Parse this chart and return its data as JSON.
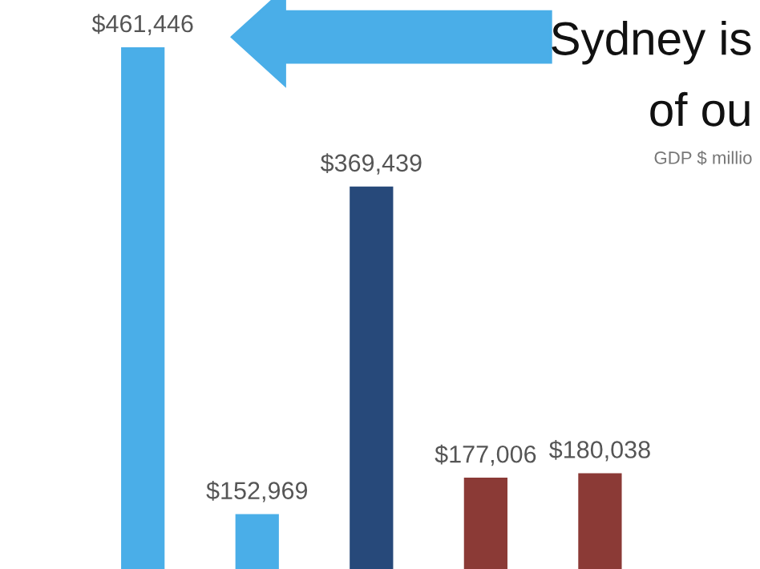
{
  "chart_data": {
    "type": "bar",
    "categories": [
      null,
      null,
      null,
      null,
      null
    ],
    "values": [
      461446,
      152969,
      369439,
      177006,
      180038
    ],
    "colors": [
      "#4aaee8",
      "#4aaee8",
      "#27497a",
      "#8b3a36",
      "#8b3a36"
    ],
    "value_labels": [
      "$461,446",
      "$152,969",
      "$369,439",
      "$177,006",
      "$180,038"
    ],
    "annotations": [
      "Sydney is",
      "of ou",
      "GDP $ millio"
    ]
  }
}
